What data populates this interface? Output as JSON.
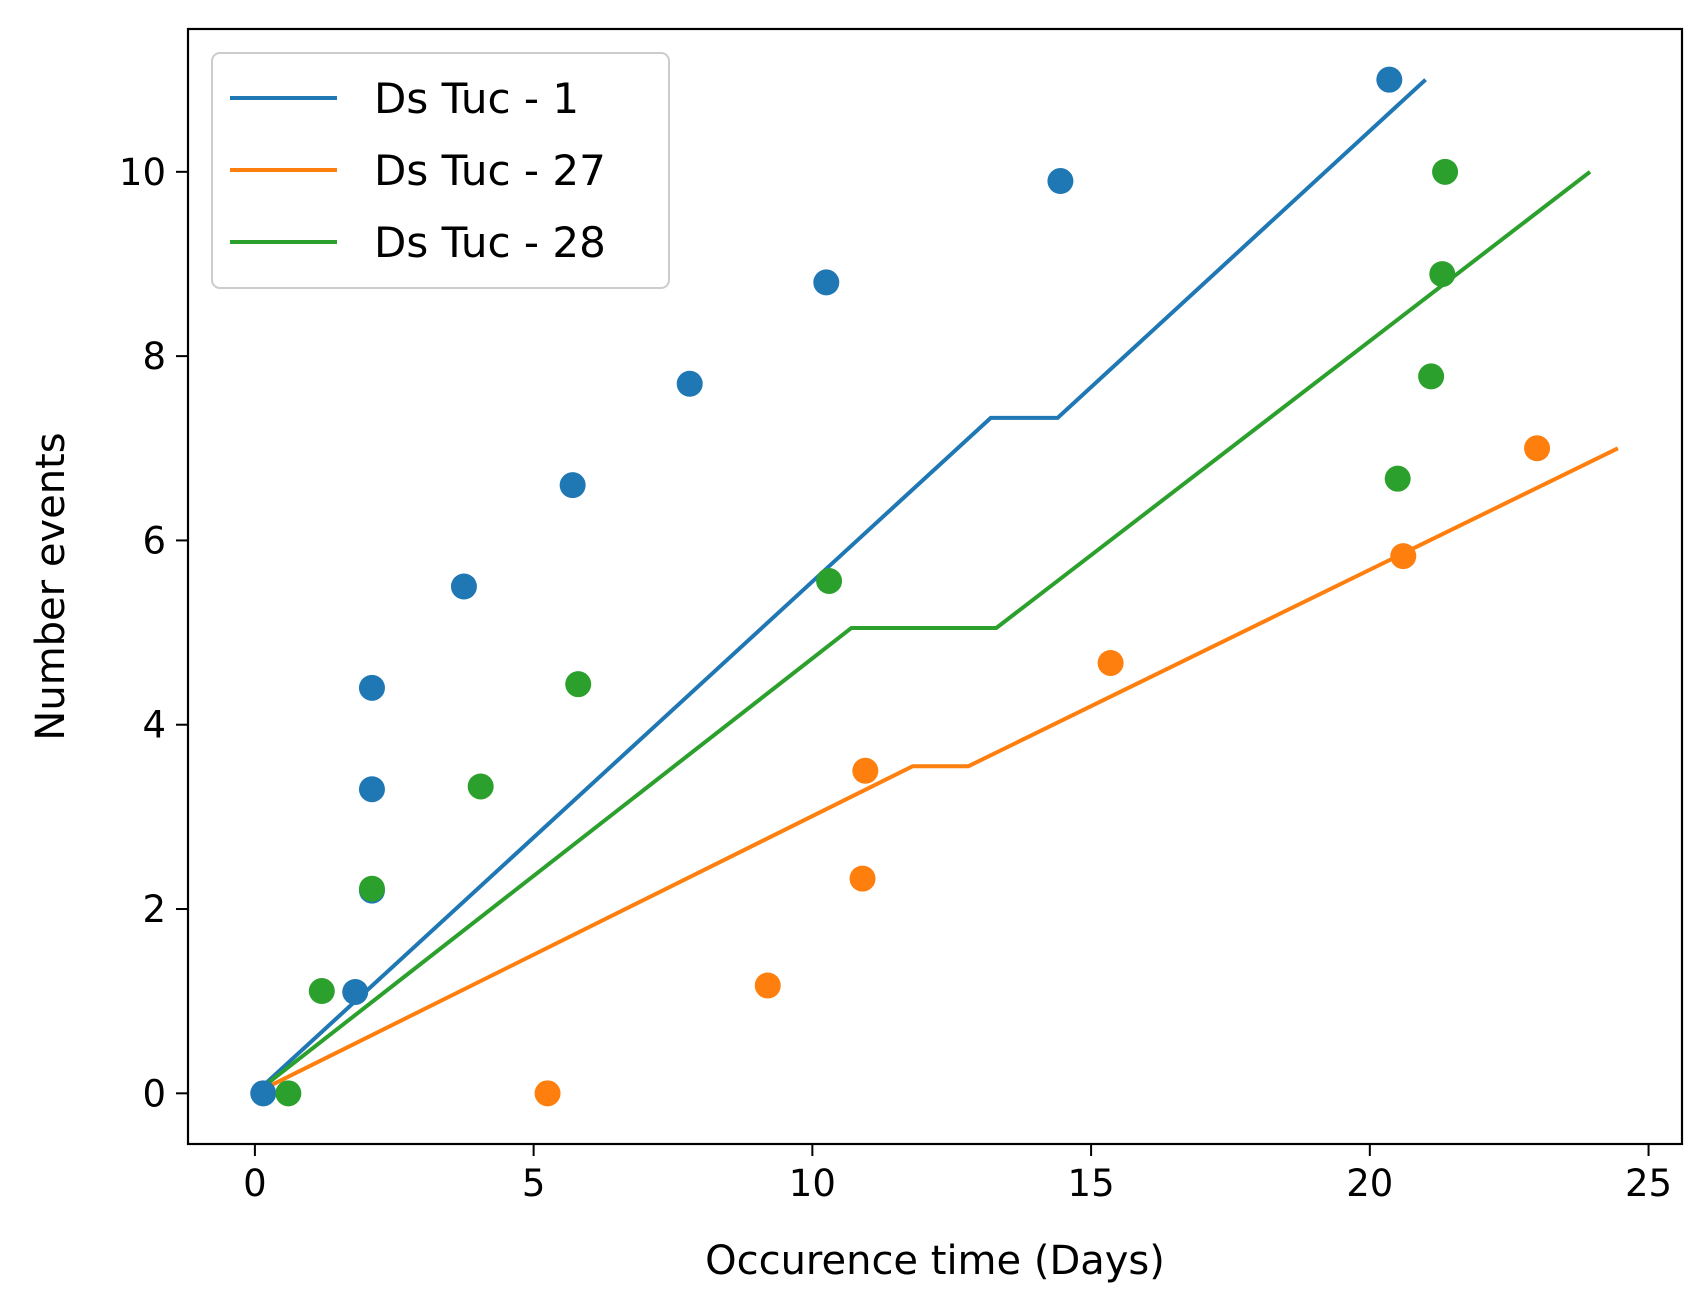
{
  "chart_data": {
    "type": "scatter",
    "title": "",
    "xlabel": "Occurence time (Days)",
    "ylabel": "Number events",
    "xlim": [
      -1.2,
      25.6
    ],
    "ylim": [
      -0.55,
      11.55
    ],
    "xticks": [
      0,
      5,
      10,
      15,
      20,
      25
    ],
    "yticks": [
      0,
      2,
      4,
      6,
      8,
      10
    ],
    "grid": false,
    "legend_position": "top-left",
    "series": [
      {
        "name": "Ds Tuc - 1",
        "color": "#1f77b4",
        "points": [
          [
            0.15,
            0
          ],
          [
            1.8,
            1.1
          ],
          [
            2.1,
            2.2
          ],
          [
            2.1,
            3.3
          ],
          [
            2.1,
            4.4
          ],
          [
            3.75,
            5.5
          ],
          [
            5.7,
            6.6
          ],
          [
            7.8,
            7.7
          ],
          [
            10.25,
            8.8
          ],
          [
            14.45,
            9.9
          ],
          [
            20.35,
            11.0
          ]
        ],
        "fit": [
          [
            0,
            0
          ],
          [
            13.2,
            7.33
          ],
          [
            14.4,
            7.33
          ],
          [
            21.0,
            11.0
          ]
        ]
      },
      {
        "name": "Ds Tuc - 27",
        "color": "#ff7f0e",
        "points": [
          [
            5.25,
            0
          ],
          [
            9.2,
            1.17
          ],
          [
            10.9,
            2.33
          ],
          [
            10.95,
            3.5
          ],
          [
            15.35,
            4.67
          ],
          [
            20.6,
            5.83
          ],
          [
            23.0,
            7.0
          ]
        ],
        "fit": [
          [
            0,
            0
          ],
          [
            11.8,
            3.55
          ],
          [
            12.8,
            3.55
          ],
          [
            24.45,
            7.0
          ]
        ]
      },
      {
        "name": "Ds Tuc - 28",
        "color": "#2ca02c",
        "points": [
          [
            0.6,
            0
          ],
          [
            1.2,
            1.11
          ],
          [
            2.1,
            2.22
          ],
          [
            4.05,
            3.33
          ],
          [
            5.8,
            4.44
          ],
          [
            10.3,
            5.56
          ],
          [
            20.5,
            6.67
          ],
          [
            21.1,
            7.78
          ],
          [
            21.3,
            8.89
          ],
          [
            21.35,
            10.0
          ]
        ],
        "fit": [
          [
            0,
            0
          ],
          [
            10.7,
            5.05
          ],
          [
            13.3,
            5.05
          ],
          [
            23.95,
            10.0
          ]
        ]
      }
    ]
  }
}
